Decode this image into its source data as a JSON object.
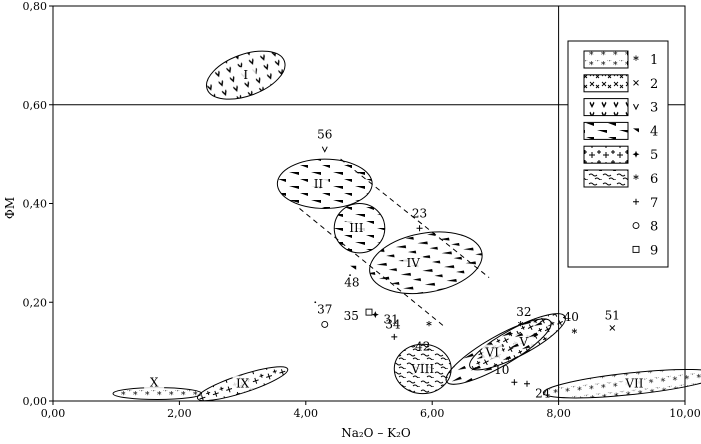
{
  "chart_data": {
    "type": "scatter",
    "title": "",
    "xlabel": "Na₂O – K₂O",
    "ylabel": "ФМ",
    "xlim": [
      0,
      10
    ],
    "ylim": [
      0,
      0.8
    ],
    "x_ticks": [
      {
        "value": 0,
        "label": "0,00"
      },
      {
        "value": 2,
        "label": "2,00"
      },
      {
        "value": 4,
        "label": "4,00"
      },
      {
        "value": 6,
        "label": "6,00"
      },
      {
        "value": 8,
        "label": "8,00"
      },
      {
        "value": 10,
        "label": "10,00"
      }
    ],
    "y_ticks": [
      {
        "value": 0,
        "label": "0,00"
      },
      {
        "value": 0.2,
        "label": "0,20"
      },
      {
        "value": 0.4,
        "label": "0,40"
      },
      {
        "value": 0.6,
        "label": "0,60"
      },
      {
        "value": 0.8,
        "label": "0,80"
      }
    ],
    "reference_lines": {
      "x": 8.0,
      "y": 0.6
    },
    "grid": false,
    "legend_position": "top-right",
    "legend": [
      {
        "label": "1",
        "marker": "*",
        "pattern": "stars"
      },
      {
        "label": "2",
        "marker": "×",
        "pattern": "crosses"
      },
      {
        "label": "3",
        "marker": "v",
        "pattern": "vees"
      },
      {
        "label": "4",
        "marker": "▴",
        "pattern": "flags"
      },
      {
        "label": "5",
        "marker": "✦",
        "pattern": "pluses"
      },
      {
        "label": "6",
        "marker": "✱",
        "pattern": "tildes"
      },
      {
        "label": "7",
        "marker": "+",
        "pattern": "none"
      },
      {
        "label": "8",
        "marker": "○",
        "pattern": "none"
      },
      {
        "label": "9",
        "marker": "□",
        "pattern": "none"
      }
    ],
    "fields": [
      {
        "label": "I",
        "cx": 3.05,
        "cy": 0.66,
        "rx": 0.65,
        "ry": 0.042,
        "angle": -20,
        "pattern": "vees",
        "label_dx": 0.0,
        "label_dy": 0.0
      },
      {
        "label": "II",
        "cx": 4.3,
        "cy": 0.44,
        "rx": 0.75,
        "ry": 0.05,
        "angle": 0,
        "pattern": "flags",
        "label_dx": -0.1,
        "label_dy": 0.0
      },
      {
        "label": "III",
        "cx": 4.85,
        "cy": 0.35,
        "rx": 0.4,
        "ry": 0.05,
        "angle": 0,
        "pattern": "flags",
        "label_dx": -0.05,
        "label_dy": 0.0
      },
      {
        "label": "IV",
        "cx": 5.9,
        "cy": 0.28,
        "rx": 0.9,
        "ry": 0.06,
        "angle": -10,
        "pattern": "flags",
        "label_dx": -0.2,
        "label_dy": 0.0
      },
      {
        "label": "V",
        "cx": 7.35,
        "cy": 0.12,
        "rx": 0.85,
        "ry": 0.028,
        "angle": -28,
        "pattern": "pluses",
        "label_dx": 0.1,
        "label_dy": 0.0
      },
      {
        "label": "VI",
        "cx": 7.05,
        "cy": 0.1,
        "rx": 0.95,
        "ry": 0.03,
        "angle": -30,
        "pattern": "flags",
        "label_dx": -0.1,
        "label_dy": -0.002
      },
      {
        "label": "VII",
        "cx": 9.15,
        "cy": 0.035,
        "rx": 1.4,
        "ry": 0.022,
        "angle": -6,
        "pattern": "stars",
        "label_dx": 0.05,
        "label_dy": 0.0
      },
      {
        "label": "VIII",
        "cx": 5.85,
        "cy": 0.065,
        "rx": 0.45,
        "ry": 0.05,
        "angle": 0,
        "pattern": "tildes",
        "label_dx": 0.0,
        "label_dy": 0.0
      },
      {
        "label": "IX",
        "cx": 3.0,
        "cy": 0.035,
        "rx": 0.75,
        "ry": 0.018,
        "angle": -18,
        "pattern": "pluses",
        "label_dx": 0.0,
        "label_dy": 0.0
      },
      {
        "label": "X",
        "cx": 1.65,
        "cy": 0.015,
        "rx": 0.7,
        "ry": 0.012,
        "angle": 0,
        "pattern": "stars",
        "label_dx": -0.05,
        "label_dy": 0.022
      }
    ],
    "trend_lines": [
      {
        "x1": 4.55,
        "y1": 0.49,
        "x2": 6.9,
        "y2": 0.25
      },
      {
        "x1": 3.9,
        "y1": 0.39,
        "x2": 6.2,
        "y2": 0.15
      }
    ],
    "points": [
      {
        "label": "56",
        "x": 4.3,
        "y": 0.51,
        "marker": "v",
        "label_dx": 0.0,
        "label_dy": 0.03
      },
      {
        "label": "23",
        "x": 5.8,
        "y": 0.35,
        "marker": "+",
        "label_dx": 0.0,
        "label_dy": 0.03
      },
      {
        "label": "48",
        "x": 4.75,
        "y": 0.27,
        "marker": "▴",
        "label_dx": -0.02,
        "label_dy": -0.03
      },
      {
        "label": "37",
        "x": 4.3,
        "y": 0.155,
        "marker": "○",
        "label_dx": 0.0,
        "label_dy": 0.03
      },
      {
        "label": "35",
        "x": 5.0,
        "y": 0.18,
        "marker": "□",
        "label_dx": -0.28,
        "label_dy": -0.008
      },
      {
        "label": "31",
        "x": 5.1,
        "y": 0.175,
        "marker": "✦",
        "label_dx": 0.25,
        "label_dy": -0.01
      },
      {
        "label": "34",
        "x": 5.4,
        "y": 0.13,
        "marker": "+",
        "label_dx": -0.02,
        "label_dy": 0.025
      },
      {
        "label": "42",
        "x": 5.95,
        "y": 0.155,
        "marker": "✱",
        "label_dx": -0.1,
        "label_dy": -0.045
      },
      {
        "label": "32",
        "x": 7.4,
        "y": 0.155,
        "marker": "✱",
        "label_dx": 0.05,
        "label_dy": 0.025
      },
      {
        "label": "10",
        "x": 7.3,
        "y": 0.038,
        "marker": "+",
        "label_dx": -0.2,
        "label_dy": 0.025
      },
      {
        "label": "24",
        "x": 7.5,
        "y": 0.035,
        "marker": "+",
        "label_dx": 0.25,
        "label_dy": -0.02
      },
      {
        "label": "40",
        "x": 8.25,
        "y": 0.14,
        "marker": "✱",
        "label_dx": -0.05,
        "label_dy": 0.03
      },
      {
        "label": "51",
        "x": 8.85,
        "y": 0.148,
        "marker": "×",
        "label_dx": 0.0,
        "label_dy": 0.025
      },
      {
        "x": 4.15,
        "y": 0.2,
        "marker": "·"
      },
      {
        "x": 4.7,
        "y": 0.255,
        "marker": "·"
      }
    ]
  }
}
